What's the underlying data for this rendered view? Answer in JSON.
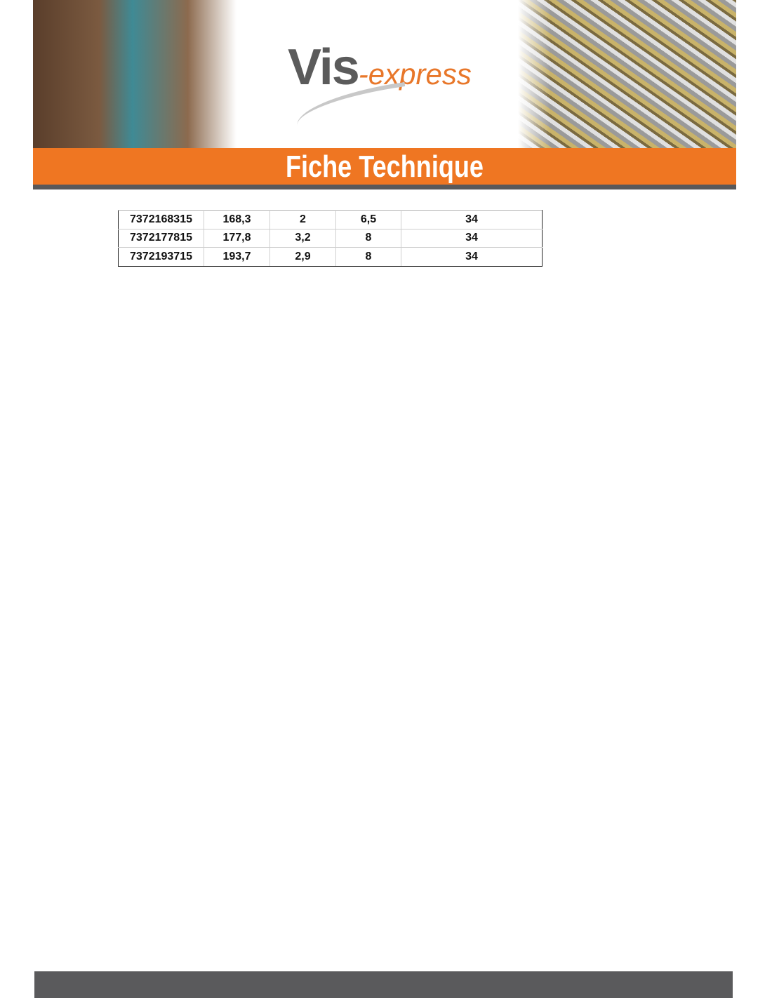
{
  "header": {
    "logo": {
      "main": "Vis",
      "suffix": "-express"
    },
    "title": "Fiche Technique",
    "colors": {
      "accent": "#ef7622",
      "dark": "#58585a"
    }
  },
  "table": {
    "rows": [
      [
        "7372168315",
        "168,3",
        "2",
        "6,5",
        "34"
      ],
      [
        "7372177815",
        "177,8",
        "3,2",
        "8",
        "34"
      ],
      [
        "7372193715",
        "193,7",
        "2,9",
        "8",
        "34"
      ]
    ]
  }
}
